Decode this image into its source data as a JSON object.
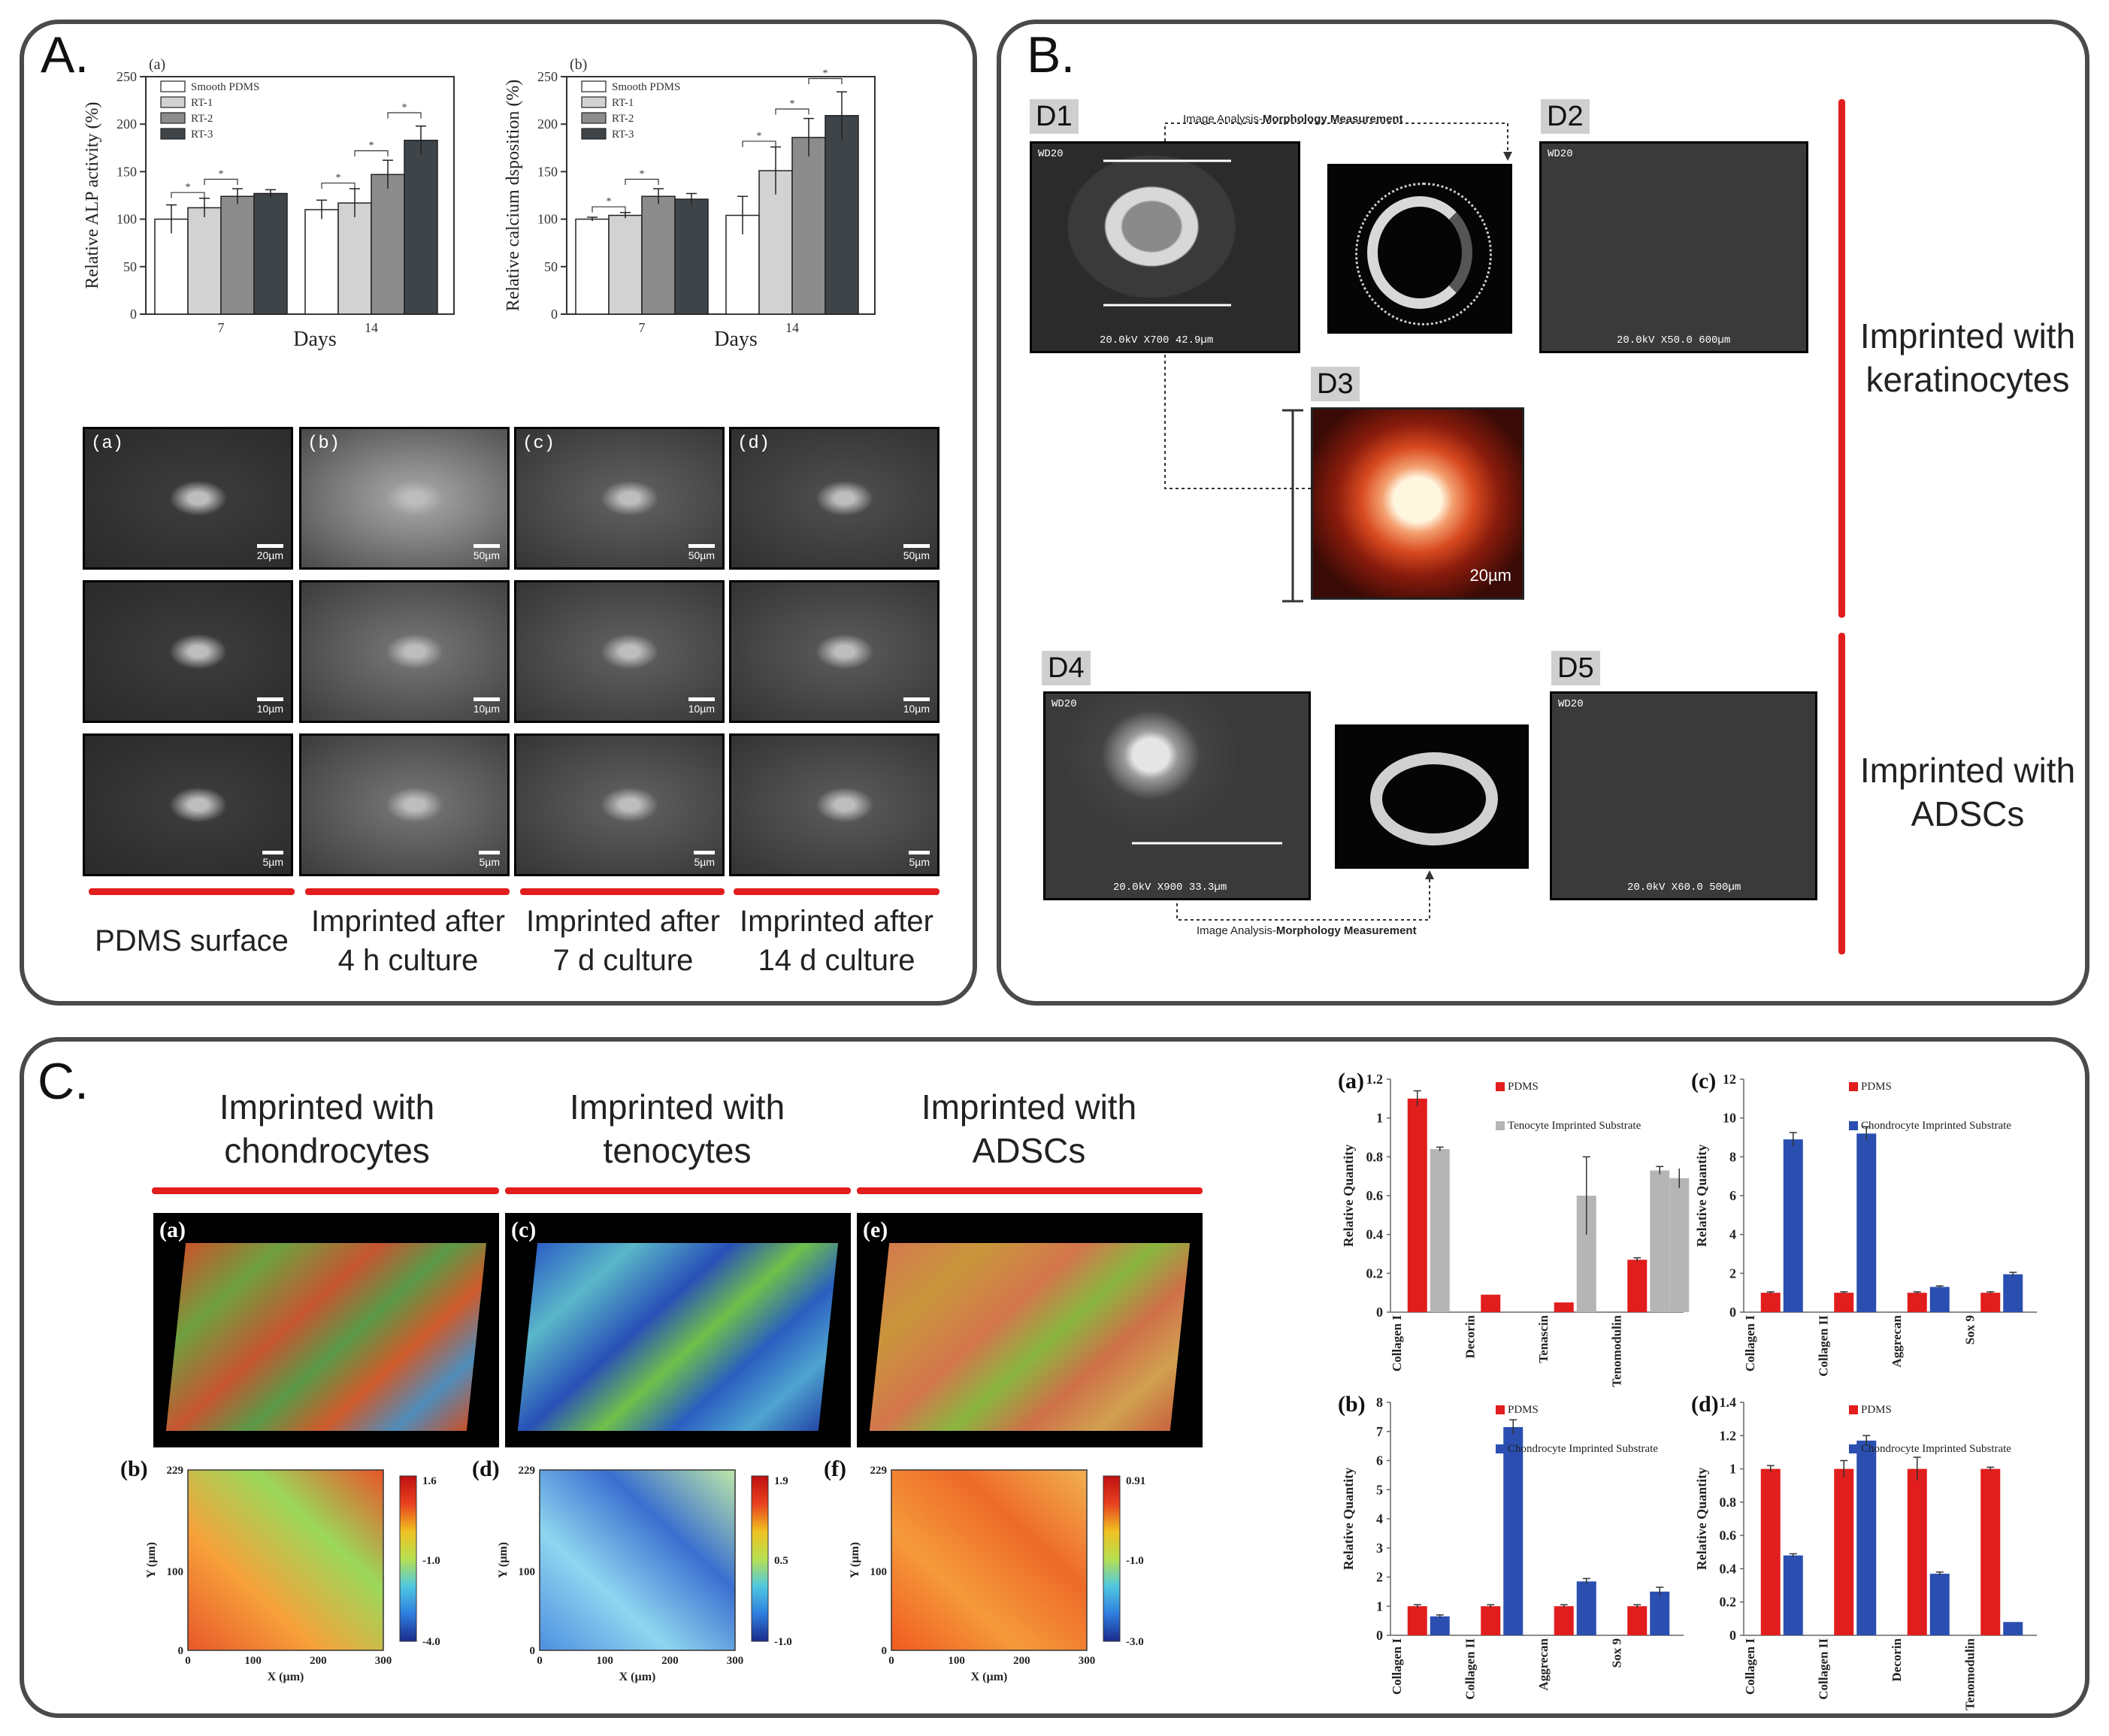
{
  "colors": {
    "red": "#e11d1d",
    "blue": "#2a4fb0",
    "grey": "#b5b5b5",
    "panel_border": "#4a4a4a"
  },
  "panelA": {
    "letter": "A.",
    "sem_tags": [
      "(a)",
      "(b)",
      "(c)",
      "(d)"
    ],
    "scalebars": {
      "row1": [
        "20µm",
        "50µm",
        "50µm",
        "50µm"
      ],
      "row2": [
        "10µm",
        "10µm",
        "10µm",
        "10µm"
      ],
      "row3": [
        "5µm",
        "5µm",
        "5µm",
        "5µm"
      ]
    },
    "captions": [
      {
        "line1": "PDMS surface",
        "line2": ""
      },
      {
        "line1": "Imprinted after",
        "line2": "4 h culture"
      },
      {
        "line1": "Imprinted after",
        "line2": "7 d culture"
      },
      {
        "line1": "Imprinted after",
        "line2": "14 d culture"
      }
    ]
  },
  "panelB": {
    "letter": "B.",
    "labels": [
      "D1",
      "D2",
      "D3",
      "D4",
      "D5"
    ],
    "analysis_prefix": "Image Analysis-",
    "analysis_bold": "Morphology Measurement",
    "sem_top": "WD20",
    "d1_info": "20.0kV  X700  42.9µm",
    "d2_info": "20.0kV  X50.0  600µm",
    "d4_info": "20.0kV  X900  33.3µm",
    "d5_info": "20.0kV  X60.0  500µm",
    "d3_scale": "20µm",
    "side_top": {
      "line1": "Imprinted with",
      "line2": "keratinocytes"
    },
    "side_bottom": {
      "line1": "Imprinted with",
      "line2": "ADSCs"
    }
  },
  "panelC": {
    "letter": "C.",
    "headers": [
      {
        "line1": "Imprinted with",
        "line2": "chondrocytes"
      },
      {
        "line1": "Imprinted with",
        "line2": "tenocytes"
      },
      {
        "line1": "Imprinted with",
        "line2": "ADSCs"
      }
    ],
    "tags3d": [
      "(a)",
      "(c)",
      "(e)"
    ],
    "tags2d": [
      "(b)",
      "(d)",
      "(f)"
    ],
    "map_axis": {
      "xlabel": "X (µm)",
      "ylabel": "Y (µm)",
      "xticks": [
        "0",
        "100",
        "200",
        "300"
      ],
      "yticks": [
        "0",
        "100",
        "229"
      ]
    },
    "colorbars": [
      [
        "1.6",
        "-1.0",
        "-4.0"
      ],
      [
        "1.9",
        "0.5",
        "-1.0"
      ],
      [
        "0.91",
        "-1.0",
        "-3.0"
      ]
    ]
  },
  "chart_data": [
    {
      "id": "A-a",
      "type": "bar",
      "tag": "(a)",
      "title": "",
      "xlabel": "Days",
      "ylabel": "Relative ALP activity (%)",
      "ylim": [
        0,
        250
      ],
      "yticks": [
        "0",
        "50",
        "100",
        "150",
        "200",
        "250"
      ],
      "categories": [
        "7",
        "14"
      ],
      "series": [
        {
          "name": "Smooth PDMS",
          "values": [
            100,
            110
          ],
          "errors": [
            15,
            10
          ],
          "color": "#ffffff"
        },
        {
          "name": "RT-1",
          "values": [
            112,
            117
          ],
          "errors": [
            10,
            15
          ],
          "color": "#d2d2d2"
        },
        {
          "name": "RT-2",
          "values": [
            124,
            147
          ],
          "errors": [
            8,
            15
          ],
          "color": "#8c8c8c"
        },
        {
          "name": "RT-3",
          "values": [
            127,
            183
          ],
          "errors": [
            4,
            15
          ],
          "color": "#3f4448"
        }
      ],
      "star": "*"
    },
    {
      "id": "A-b",
      "type": "bar",
      "tag": "(b)",
      "title": "",
      "xlabel": "Days",
      "ylabel": "Relative calcium dsposition (%)",
      "ylim": [
        0,
        250
      ],
      "yticks": [
        "0",
        "50",
        "100",
        "150",
        "200",
        "250"
      ],
      "categories": [
        "7",
        "14"
      ],
      "series": [
        {
          "name": "Smooth PDMS",
          "values": [
            100,
            104
          ],
          "errors": [
            2,
            20
          ],
          "color": "#ffffff"
        },
        {
          "name": "RT-1",
          "values": [
            104,
            151
          ],
          "errors": [
            3,
            25
          ],
          "color": "#d2d2d2"
        },
        {
          "name": "RT-2",
          "values": [
            124,
            186
          ],
          "errors": [
            8,
            20
          ],
          "color": "#8c8c8c"
        },
        {
          "name": "RT-3",
          "values": [
            121,
            209
          ],
          "errors": [
            6,
            25
          ],
          "color": "#3f4448"
        }
      ],
      "star": "*"
    },
    {
      "id": "C-a",
      "type": "bar",
      "tag": "(a)",
      "ylabel": "Relative Quantity",
      "ylim": [
        0,
        1.2
      ],
      "yticks": [
        "0",
        "0.2",
        "0.4",
        "0.6",
        "0.8",
        "1",
        "1.2"
      ],
      "categories": [
        "Collagen I",
        "Decorin",
        "Tenascin",
        "Tenomodulin"
      ],
      "series": [
        {
          "name": "PDMS",
          "values": [
            1.1,
            0.09,
            0.05,
            0.27
          ],
          "errors": [
            0.04,
            0,
            0,
            0.01
          ],
          "color": "#e11d1d"
        },
        {
          "name": "Tenocyte Imprinted Substrate",
          "values": [
            0.84,
            0,
            0.6,
            0.73
          ],
          "errors": [
            0.01,
            0,
            0.2,
            0.02
          ],
          "color": "#b5b5b5"
        }
      ],
      "extra_bar": {
        "value": 0.69,
        "error": 0.05
      }
    },
    {
      "id": "C-b",
      "type": "bar",
      "tag": "(b)",
      "ylabel": "Relative Quantity",
      "ylim": [
        0,
        8
      ],
      "yticks": [
        "0",
        "1",
        "2",
        "3",
        "4",
        "5",
        "6",
        "7",
        "8"
      ],
      "categories": [
        "Collagen I",
        "Collagen II",
        "Aggrecan",
        "Sox 9"
      ],
      "series": [
        {
          "name": "PDMS",
          "values": [
            1,
            1,
            1,
            1
          ],
          "errors": [
            0.05,
            0.05,
            0.05,
            0.05
          ],
          "color": "#e11d1d"
        },
        {
          "name": "Chondrocyte Imprinted Substrate",
          "values": [
            0.65,
            7.15,
            1.85,
            1.5
          ],
          "errors": [
            0.05,
            0.25,
            0.1,
            0.15
          ],
          "color": "#2a4fb0"
        }
      ]
    },
    {
      "id": "C-c",
      "type": "bar",
      "tag": "(c)",
      "ylabel": "Relative Quantity",
      "ylim": [
        0,
        12
      ],
      "yticks": [
        "0",
        "2",
        "4",
        "6",
        "8",
        "10",
        "12"
      ],
      "categories": [
        "Collagen I",
        "Collagen II",
        "Aggrecan",
        "Sox 9"
      ],
      "series": [
        {
          "name": "PDMS",
          "values": [
            1,
            1,
            1,
            1
          ],
          "errors": [
            0.05,
            0.05,
            0.05,
            0.05
          ],
          "color": "#e11d1d"
        },
        {
          "name": "Chondrocyte Imprinted Substrate",
          "values": [
            8.9,
            9.2,
            1.3,
            1.95
          ],
          "errors": [
            0.35,
            0.35,
            0.05,
            0.1
          ],
          "color": "#2a4fb0"
        }
      ]
    },
    {
      "id": "C-d",
      "type": "bar",
      "tag": "(d)",
      "ylabel": "Relative Quantity",
      "ylim": [
        0,
        1.4
      ],
      "yticks": [
        "0",
        "0.2",
        "0.4",
        "0.6",
        "0.8",
        "1",
        "1.2",
        "1.4"
      ],
      "categories": [
        "Collagen I",
        "Collagen II",
        "Decorin",
        "Tenomodulin"
      ],
      "series": [
        {
          "name": "PDMS",
          "values": [
            1,
            1,
            1,
            1
          ],
          "errors": [
            0.02,
            0.05,
            0.07,
            0.01
          ],
          "color": "#e11d1d"
        },
        {
          "name": "Chondrocyte Imprinted Substrate",
          "values": [
            0.48,
            1.17,
            0.37,
            0.08
          ],
          "errors": [
            0.01,
            0.03,
            0.01,
            0
          ],
          "color": "#2a4fb0"
        }
      ]
    }
  ]
}
